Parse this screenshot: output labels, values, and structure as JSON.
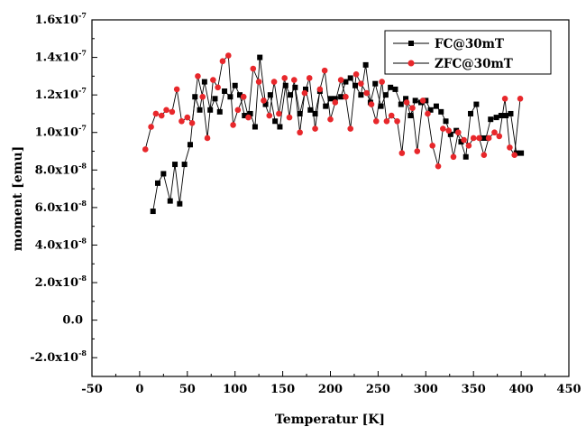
{
  "chart_data": {
    "type": "line",
    "xlabel": "Temperatur [K]",
    "ylabel": "moment [emu]",
    "xlim": [
      -50,
      450
    ],
    "ylim": [
      -3e-08,
      1.6e-07
    ],
    "x_ticks": [
      -50,
      0,
      50,
      100,
      150,
      200,
      250,
      300,
      350,
      400,
      450
    ],
    "y_ticks": [
      {
        "value": 1.6e-07,
        "mantissa": "1.6x10",
        "exp": "-7"
      },
      {
        "value": 1.4e-07,
        "mantissa": "1.4x10",
        "exp": "-7"
      },
      {
        "value": 1.2e-07,
        "mantissa": "1.2x10",
        "exp": "-7"
      },
      {
        "value": 1e-07,
        "mantissa": "1.0x10",
        "exp": "-7"
      },
      {
        "value": 8e-08,
        "mantissa": "8.0x10",
        "exp": "-8"
      },
      {
        "value": 6e-08,
        "mantissa": "6.0x10",
        "exp": "-8"
      },
      {
        "value": 4e-08,
        "mantissa": "4.0x10",
        "exp": "-8"
      },
      {
        "value": 2e-08,
        "mantissa": "2.0x10",
        "exp": "-8"
      },
      {
        "value": 0.0,
        "mantissa": "0.0",
        "exp": ""
      },
      {
        "value": -2e-08,
        "mantissa": "-2.0x10",
        "exp": "-8"
      }
    ],
    "legend_position": "top-right",
    "grid": false,
    "series": [
      {
        "name": "FC@30mT",
        "color": "#000000",
        "marker": "square",
        "x": [
          14,
          19,
          25,
          32,
          37,
          42,
          47,
          53,
          58,
          63,
          68,
          74,
          79,
          84,
          89,
          95,
          100,
          105,
          110,
          116,
          121,
          126,
          132,
          137,
          142,
          147,
          153,
          158,
          163,
          168,
          174,
          179,
          184,
          189,
          195,
          200,
          205,
          211,
          216,
          221,
          226,
          232,
          237,
          242,
          247,
          253,
          258,
          263,
          268,
          274,
          279,
          284,
          289,
          295,
          300,
          305,
          311,
          316,
          321,
          326,
          332,
          337,
          342,
          347,
          353,
          358,
          363,
          368,
          374,
          379,
          384,
          389,
          395,
          400
        ],
        "values": [
          5.8e-08,
          7.3e-08,
          7.8e-08,
          6.35e-08,
          8.3e-08,
          6.2e-08,
          8.3e-08,
          9.35e-08,
          1.19e-07,
          1.12e-07,
          1.27e-07,
          1.12e-07,
          1.18e-07,
          1.11e-07,
          1.22e-07,
          1.19e-07,
          1.25e-07,
          1.2e-07,
          1.09e-07,
          1.1e-07,
          1.03e-07,
          1.4e-07,
          1.15e-07,
          1.2e-07,
          1.06e-07,
          1.03e-07,
          1.25e-07,
          1.2e-07,
          1.24e-07,
          1.1e-07,
          1.23e-07,
          1.12e-07,
          1.1e-07,
          1.22e-07,
          1.14e-07,
          1.18e-07,
          1.18e-07,
          1.19e-07,
          1.27e-07,
          1.29e-07,
          1.25e-07,
          1.2e-07,
          1.36e-07,
          1.16e-07,
          1.26e-07,
          1.14e-07,
          1.2e-07,
          1.24e-07,
          1.23e-07,
          1.15e-07,
          1.18e-07,
          1.09e-07,
          1.17e-07,
          1.16e-07,
          1.17e-07,
          1.12e-07,
          1.14e-07,
          1.11e-07,
          1.06e-07,
          9.9e-08,
          1.01e-07,
          9.5e-08,
          8.7e-08,
          1.1e-07,
          1.15e-07,
          9.7e-08,
          9.7e-08,
          1.07e-07,
          1.08e-07,
          1.09e-07,
          1.09e-07,
          1.1e-07,
          8.9e-08,
          8.9e-08
        ]
      },
      {
        "name": "ZFC@30mT",
        "color": "#e8272b",
        "marker": "circle",
        "x": [
          6,
          12,
          17,
          23,
          28,
          34,
          39,
          44,
          50,
          55,
          61,
          66,
          71,
          77,
          82,
          87,
          93,
          98,
          103,
          109,
          114,
          119,
          125,
          130,
          136,
          141,
          146,
          152,
          157,
          162,
          168,
          173,
          178,
          184,
          189,
          194,
          200,
          205,
          211,
          216,
          221,
          227,
          232,
          238,
          243,
          248,
          254,
          259,
          264,
          270,
          275,
          280,
          286,
          291,
          297,
          302,
          307,
          313,
          318,
          324,
          329,
          334,
          340,
          345,
          350,
          356,
          361,
          366,
          372,
          377,
          383,
          388,
          393,
          399
        ],
        "values": [
          9.1e-08,
          1.03e-07,
          1.1e-07,
          1.09e-07,
          1.12e-07,
          1.11e-07,
          1.23e-07,
          1.06e-07,
          1.08e-07,
          1.05e-07,
          1.3e-07,
          1.19e-07,
          9.7e-08,
          1.28e-07,
          1.24e-07,
          1.38e-07,
          1.41e-07,
          1.04e-07,
          1.12e-07,
          1.19e-07,
          1.08e-07,
          1.34e-07,
          1.27e-07,
          1.17e-07,
          1.09e-07,
          1.27e-07,
          1.1e-07,
          1.29e-07,
          1.08e-07,
          1.28e-07,
          1e-07,
          1.21e-07,
          1.29e-07,
          1.02e-07,
          1.23e-07,
          1.33e-07,
          1.07e-07,
          1.16e-07,
          1.28e-07,
          1.19e-07,
          1.02e-07,
          1.31e-07,
          1.26e-07,
          1.21e-07,
          1.15e-07,
          1.06e-07,
          1.27e-07,
          1.06e-07,
          1.09e-07,
          1.06e-07,
          8.9e-08,
          1.16e-07,
          1.13e-07,
          9e-08,
          1.17e-07,
          1.1e-07,
          9.3e-08,
          8.2e-08,
          1.02e-07,
          1.01e-07,
          8.7e-08,
          1e-07,
          9.6e-08,
          9.3e-08,
          9.7e-08,
          9.7e-08,
          8.8e-08,
          9.7e-08,
          1e-07,
          9.8e-08,
          1.18e-07,
          9.2e-08,
          8.8e-08,
          1.18e-07
        ]
      }
    ]
  }
}
